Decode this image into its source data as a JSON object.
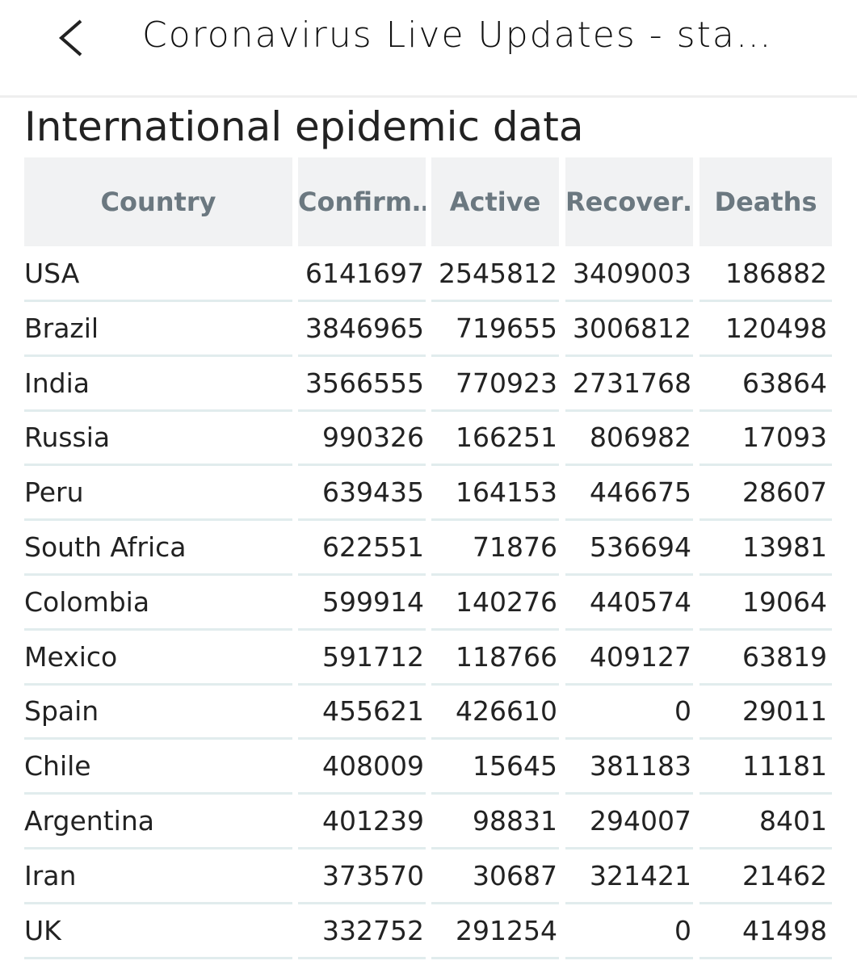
{
  "header": {
    "title": "Coronavirus Live Updates - sta…"
  },
  "section_title": "International epidemic data",
  "table": {
    "columns": [
      "Country",
      "Confirm…",
      "Active",
      "Recover…",
      "Deaths"
    ],
    "rows": [
      [
        "USA",
        6141697,
        2545812,
        3409003,
        186882
      ],
      [
        "Brazil",
        3846965,
        719655,
        3006812,
        120498
      ],
      [
        "India",
        3566555,
        770923,
        2731768,
        63864
      ],
      [
        "Russia",
        990326,
        166251,
        806982,
        17093
      ],
      [
        "Peru",
        639435,
        164153,
        446675,
        28607
      ],
      [
        "South Africa",
        622551,
        71876,
        536694,
        13981
      ],
      [
        "Colombia",
        599914,
        140276,
        440574,
        19064
      ],
      [
        "Mexico",
        591712,
        118766,
        409127,
        63819
      ],
      [
        "Spain",
        455621,
        426610,
        0,
        29011
      ],
      [
        "Chile",
        408009,
        15645,
        381183,
        11181
      ],
      [
        "Argentina",
        401239,
        98831,
        294007,
        8401
      ],
      [
        "Iran",
        373570,
        30687,
        321421,
        21462
      ],
      [
        "UK",
        332752,
        291254,
        0,
        41498
      ]
    ]
  }
}
